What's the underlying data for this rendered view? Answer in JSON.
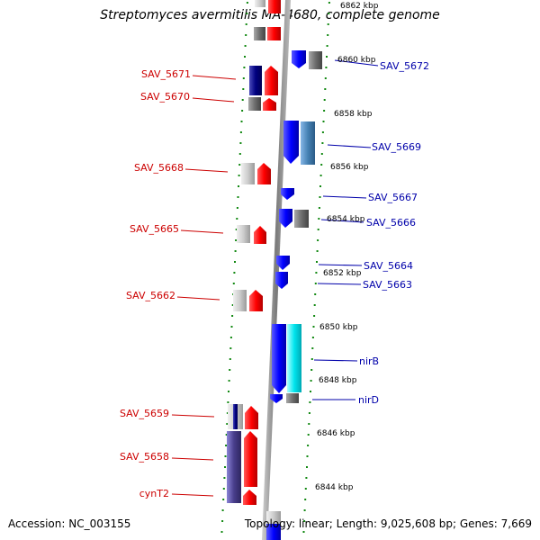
{
  "title": "Streptomyces avermitilis MA-4680, complete genome",
  "footer": {
    "accession": "Accession: NC_003155",
    "summary": "Topology: linear; Length: 9,025,608 bp; Genes: 7,669"
  },
  "colors": {
    "left_label": "#cc0000",
    "right_label": "#0000aa",
    "tick": "#118811",
    "axis": "#808080"
  },
  "scale_labels": [
    "6862 kbp",
    "6860 kbp",
    "6858 kbp",
    "6856 kbp",
    "6854 kbp",
    "6852 kbp",
    "6850 kbp",
    "6848 kbp",
    "6846 kbp",
    "6844 kbp"
  ],
  "left_genes": [
    "SAV_5671",
    "SAV_5670",
    "SAV_5668",
    "SAV_5665",
    "SAV_5662",
    "SAV_5659",
    "SAV_5658",
    "cynT2"
  ],
  "right_genes": [
    "SAV_5672",
    "SAV_5669",
    "SAV_5667",
    "SAV_5666",
    "SAV_5664",
    "SAV_5663",
    "nirB",
    "nirD"
  ]
}
